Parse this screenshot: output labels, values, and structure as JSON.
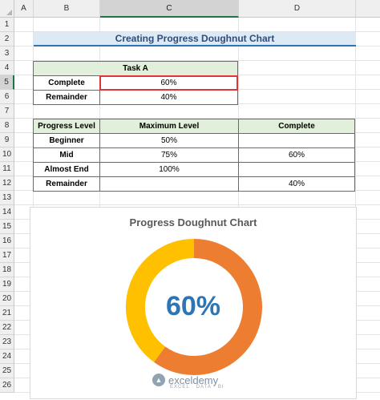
{
  "columns": [
    "A",
    "B",
    "C",
    "D"
  ],
  "rows": [
    "1",
    "2",
    "3",
    "4",
    "5",
    "6",
    "7",
    "8",
    "9",
    "10",
    "11",
    "12",
    "13",
    "14",
    "15",
    "16",
    "17",
    "18",
    "19",
    "20",
    "21",
    "22",
    "23",
    "24",
    "25",
    "26"
  ],
  "title": "Creating Progress Doughnut Chart",
  "task_table": {
    "header": "Task A",
    "rows": [
      {
        "label": "Complete",
        "value": "60%"
      },
      {
        "label": "Remainder",
        "value": "40%"
      }
    ]
  },
  "level_table": {
    "headers": [
      "Progress Level",
      "Maximum Level",
      "Complete"
    ],
    "rows": [
      {
        "level": "Beginner",
        "maximum": "50%",
        "complete": ""
      },
      {
        "level": "Mid",
        "maximum": "75%",
        "complete": "60%"
      },
      {
        "level": "Almost End",
        "maximum": "100%",
        "complete": ""
      },
      {
        "level": "Remainder",
        "maximum": "",
        "complete": "40%"
      }
    ]
  },
  "chart_data": {
    "type": "pie",
    "title": "Progress Doughnut Chart",
    "center_label": "60%",
    "categories": [
      "Complete",
      "Remainder"
    ],
    "values": [
      60,
      40
    ],
    "colors": [
      "#ed7d31",
      "#ffc000"
    ]
  },
  "watermark": {
    "name": "exceldemy",
    "tagline": "EXCEL · DATA · BI"
  }
}
